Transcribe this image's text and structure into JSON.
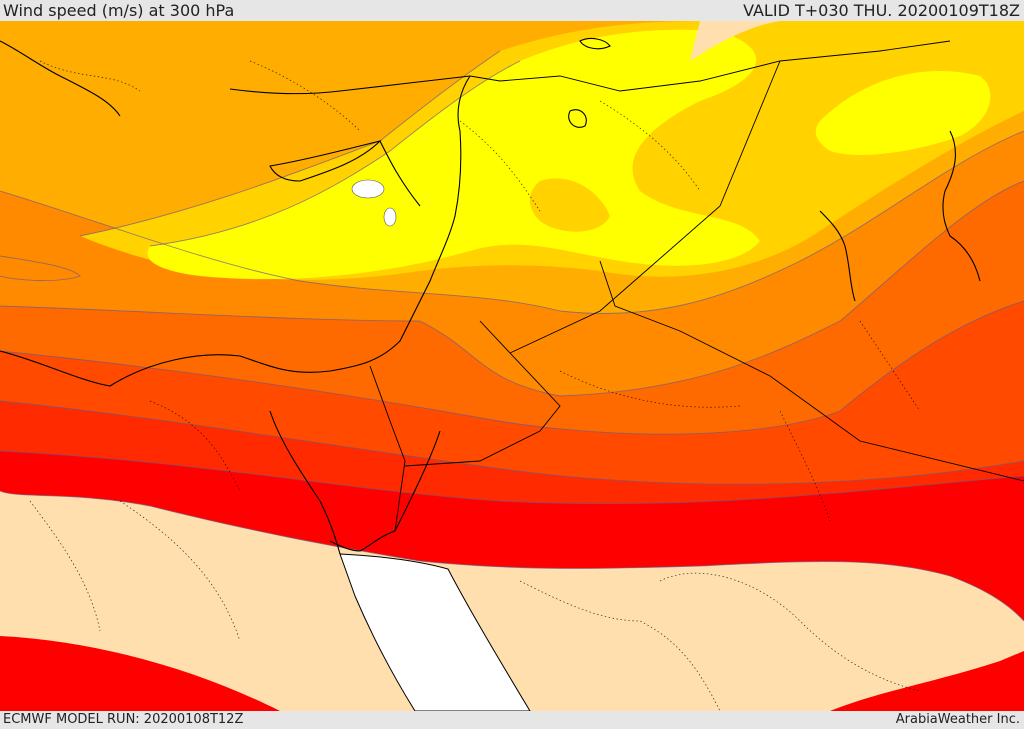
{
  "header": {
    "title": "Wind speed (m/s) at 300 hPa",
    "valid_time": "VALID T+030 THU. 20200109T18Z"
  },
  "footer": {
    "model_run": "ECMWF MODEL RUN: 20200108T12Z",
    "credit": "ArabiaWeather Inc."
  },
  "map": {
    "region": "Eastern Mediterranean / Middle East",
    "field": "wind speed at 300 hPa",
    "fill_colors": [
      "#ffffff",
      "#ffdfad",
      "#ff0000",
      "#ff2a00",
      "#ff4a00",
      "#ff6a00",
      "#ff8a00",
      "#ffad00",
      "#ffd200",
      "#ffff00"
    ]
  }
}
